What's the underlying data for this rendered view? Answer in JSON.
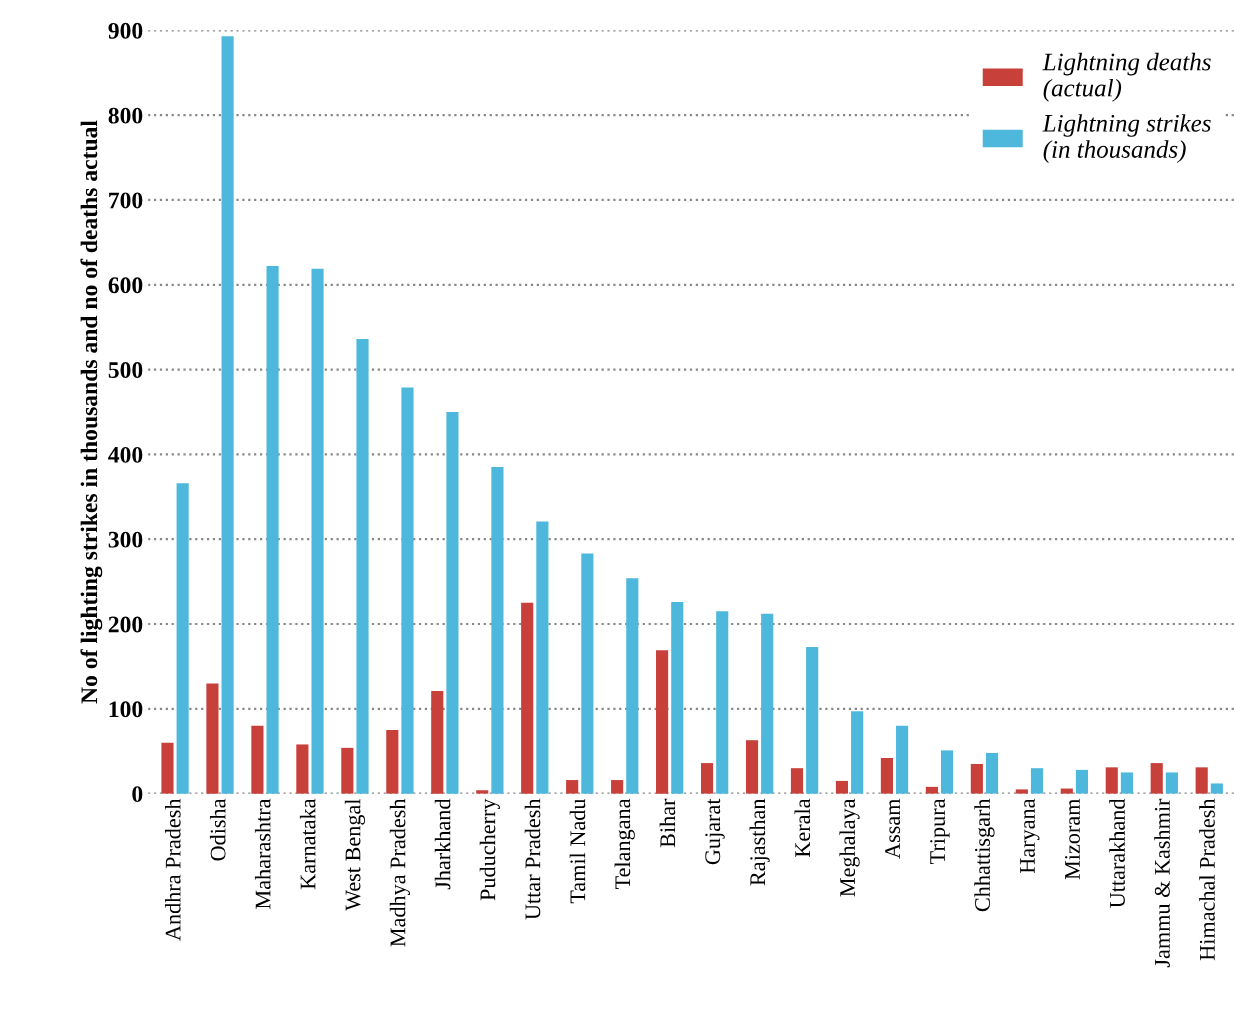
{
  "chart_data": {
    "type": "bar",
    "ylabel": "No of lighting strikes in thousands and no of deaths actual",
    "categories": [
      "Andhra Pradesh",
      "Odisha",
      "Maharashtra",
      "Karnataka",
      "West Bengal",
      "Madhya Pradesh",
      "Jharkhand",
      "Puducherry",
      "Uttar Pradesh",
      "Tamil Nadu",
      "Telangana",
      "Bihar",
      "Gujarat",
      "Rajasthan",
      "Kerala",
      "Meghalaya",
      "Assam",
      "Tripura",
      "Chhattisgarh",
      "Haryana",
      "Mizoram",
      "Uttarakhand",
      "Jammu & Kashmir",
      "Himachal Pradesh"
    ],
    "series": [
      {
        "name": "Lightning deaths\n(actual)",
        "color": "#c8403a",
        "values": [
          60,
          130,
          80,
          58,
          54,
          75,
          121,
          4,
          225,
          16,
          16,
          169,
          36,
          63,
          30,
          15,
          42,
          8,
          35,
          5,
          6,
          31,
          36,
          31
        ]
      },
      {
        "name": "Lightning strikes\n(in thousands)",
        "color": "#4eb8dc",
        "values": [
          366,
          893,
          622,
          619,
          536,
          479,
          450,
          385,
          321,
          283,
          254,
          226,
          215,
          212,
          173,
          97,
          80,
          51,
          48,
          30,
          28,
          25,
          25,
          12
        ]
      }
    ],
    "ylim": [
      0,
      900
    ],
    "yticks": [
      0,
      100,
      200,
      300,
      400,
      500,
      600,
      700,
      800,
      900
    ],
    "grid": "y",
    "legend": "top right"
  }
}
